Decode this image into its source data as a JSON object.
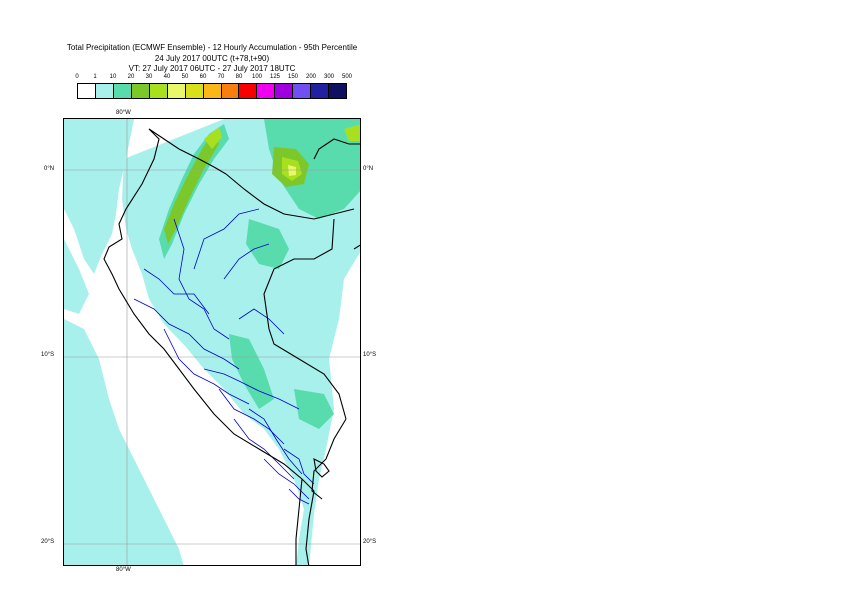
{
  "title": {
    "line1": "Total Precipitation (ECMWF Ensemble) - 12 Hourly Accumulation - 95th Percentile",
    "line2": "24 July 2017 00UTC (t+78,t+90)",
    "line3": "VT: 27 July 2017 06UTC - 27 July 2017 18UTC"
  },
  "legend": {
    "ticks": [
      "0",
      "1",
      "10",
      "20",
      "30",
      "40",
      "50",
      "60",
      "70",
      "80",
      "100",
      "125",
      "150",
      "200",
      "300",
      "500"
    ],
    "colors": [
      "#ffffff",
      "#a8f0ec",
      "#58dcae",
      "#7cc82a",
      "#a8e020",
      "#e8f86a",
      "#d8e01c",
      "#f8b818",
      "#f87e10",
      "#f80000",
      "#f000f0",
      "#a000e0",
      "#7050f0",
      "#2020a0",
      "#101060"
    ]
  },
  "axes": {
    "lon_top": "80°W",
    "lon_bottom": "80°W",
    "lat_labels": [
      "0°N",
      "10°S",
      "20°S"
    ]
  },
  "map_colors": {
    "sea_bg": "#ffffff",
    "precip_1_10": "#a8f0ec",
    "precip_10_20": "#58dcae",
    "precip_20_30": "#7cc82a",
    "precip_30_40": "#a8e020",
    "precip_40_50": "#e8f86a",
    "coastline": "#000000",
    "provinces": "#0000cc",
    "grid": "#999999"
  }
}
